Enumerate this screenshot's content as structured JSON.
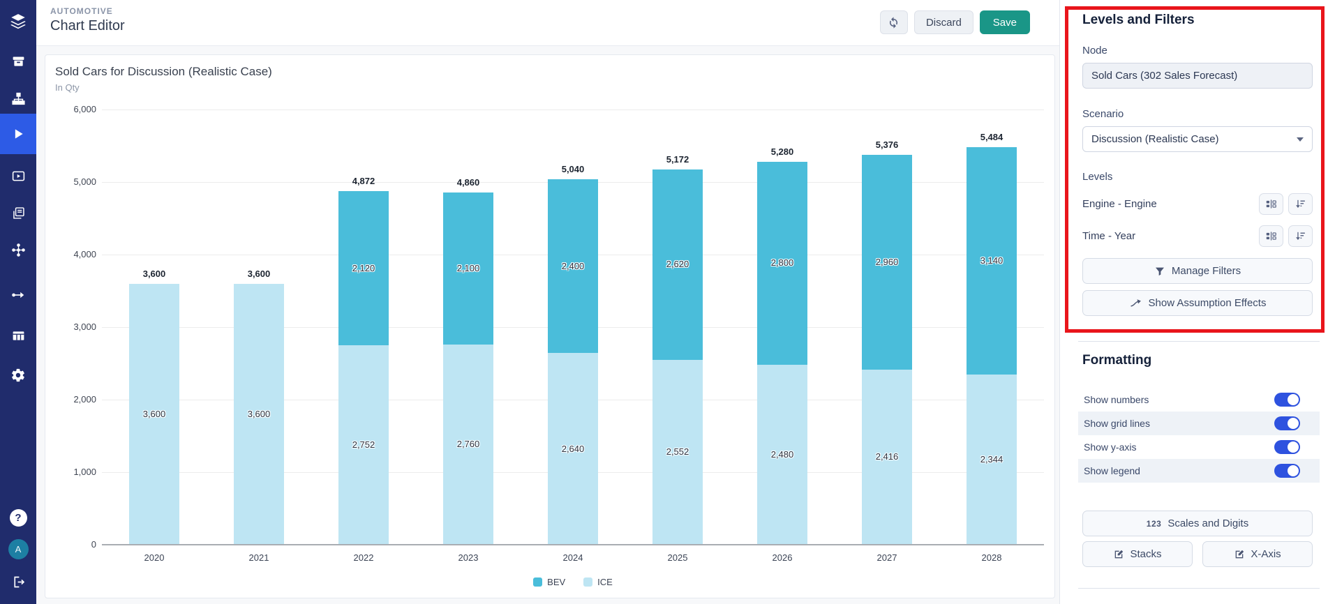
{
  "header": {
    "eyebrow": "AUTOMOTIVE",
    "title": "Chart Editor",
    "discard_label": "Discard",
    "save_label": "Save",
    "refresh_icon": "sync-arrows"
  },
  "sidebar": {
    "icons": [
      "layers-logo",
      "archive",
      "sitemap",
      "play",
      "video",
      "pages",
      "network",
      "flow-arrow",
      "table",
      "settings",
      "help",
      "avatar",
      "logout"
    ],
    "active_item": "play",
    "help_glyph": "?",
    "avatar_initial": "A"
  },
  "chart_data": {
    "type": "bar",
    "stacked": true,
    "title": "Sold Cars for Discussion (Realistic Case)",
    "subtitle": "In Qty",
    "categories": [
      "2020",
      "2021",
      "2022",
      "2023",
      "2024",
      "2025",
      "2026",
      "2027",
      "2028"
    ],
    "series": [
      {
        "name": "BEV",
        "color": "#4abdda",
        "values": [
          0,
          0,
          2120,
          2100,
          2400,
          2620,
          2800,
          2960,
          3140
        ]
      },
      {
        "name": "ICE",
        "color": "#bee5f3",
        "values": [
          3600,
          3600,
          2752,
          2760,
          2640,
          2552,
          2480,
          2416,
          2344
        ]
      }
    ],
    "totals": [
      3600,
      3600,
      4872,
      4860,
      5040,
      5172,
      5280,
      5376,
      5484
    ],
    "ylim": [
      0,
      6000
    ],
    "y_step": 1000,
    "grid": true,
    "show_numbers": true,
    "legend_position": "bottom"
  },
  "panel": {
    "heading": "Levels and Filters",
    "node_label": "Node",
    "node_value": "Sold Cars (302 Sales Forecast)",
    "scenario_label": "Scenario",
    "scenario_value": "Discussion (Realistic Case)",
    "levels_label": "Levels",
    "levels": [
      "Engine - Engine",
      "Time - Year"
    ],
    "level_icons": [
      "levels-structure",
      "sort-descending"
    ],
    "manage_filters_label": "Manage Filters",
    "show_assumption_label": "Show Assumption Effects",
    "highlight_color": "#e9151b"
  },
  "formatting": {
    "heading": "Formatting",
    "toggles": [
      {
        "label": "Show numbers",
        "on": true
      },
      {
        "label": "Show grid lines",
        "on": true
      },
      {
        "label": "Show y-axis",
        "on": true
      },
      {
        "label": "Show legend",
        "on": true
      }
    ],
    "scales_icon": "123",
    "scales_label": "Scales and Digits",
    "stacks_label": "Stacks",
    "xaxis_label": "X-Axis",
    "toggle_on_color": "#2e52df"
  }
}
